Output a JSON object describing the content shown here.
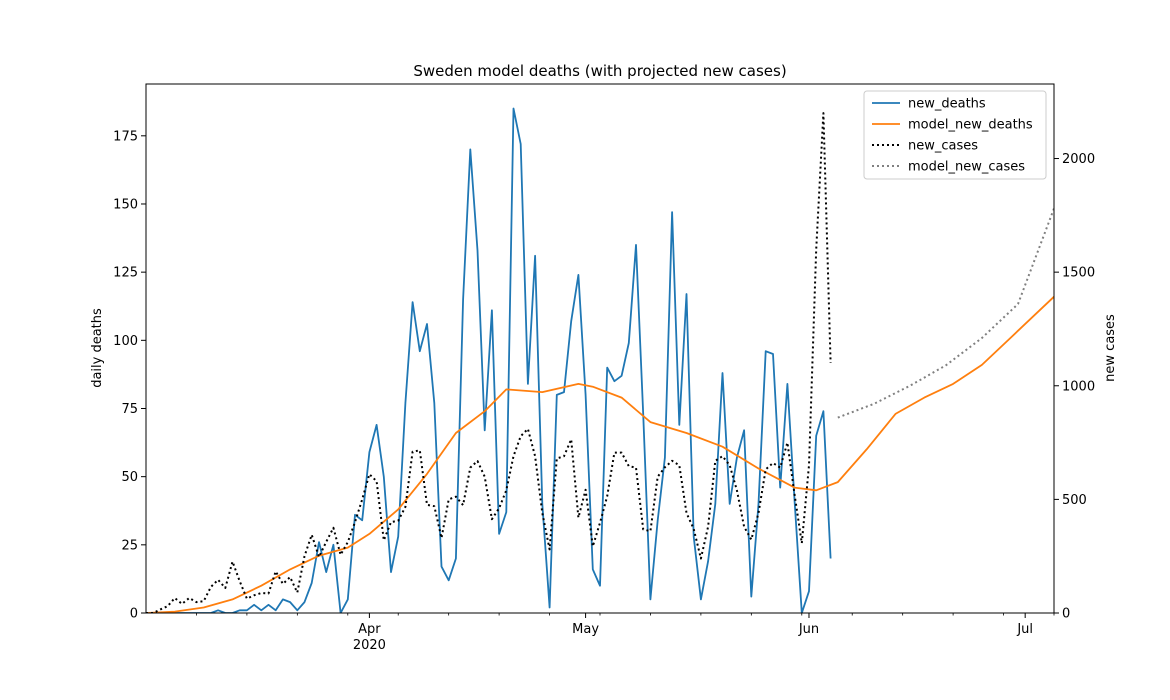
{
  "chart_data": {
    "type": "line",
    "title": "Sweden model deaths (with projected new cases)",
    "ylabel_left": "daily deaths",
    "ylabel_right": "new cases",
    "xlim": [
      "2020-03-01",
      "2020-07-05"
    ],
    "ylim_left": [
      0,
      194
    ],
    "ylim_right": [
      0,
      2328
    ],
    "yticks_left": [
      0,
      25,
      50,
      75,
      100,
      125,
      150,
      175
    ],
    "yticks_right": [
      0,
      500,
      1000,
      1500,
      2000
    ],
    "xticks_major": [
      {
        "date": "2020-04-01",
        "label": "Apr",
        "sublabel": "2020"
      },
      {
        "date": "2020-05-01",
        "label": "May",
        "sublabel": ""
      },
      {
        "date": "2020-06-01",
        "label": "Jun",
        "sublabel": ""
      },
      {
        "date": "2020-07-01",
        "label": "Jul",
        "sublabel": ""
      }
    ],
    "xticks_minor": [
      "2020-03-08",
      "2020-03-15",
      "2020-03-22",
      "2020-03-29",
      "2020-04-05",
      "2020-04-12",
      "2020-04-19",
      "2020-04-26",
      "2020-05-03",
      "2020-05-10",
      "2020-05-17",
      "2020-05-24",
      "2020-05-31",
      "2020-06-07",
      "2020-06-14",
      "2020-06-21",
      "2020-06-28",
      "2020-07-05"
    ],
    "grid": false,
    "legend_position": "top-right",
    "series": [
      {
        "name": "new_deaths",
        "axis": "left",
        "color": "#1f77b4",
        "style": "solid",
        "start": "2020-03-01",
        "values": [
          0,
          0,
          0,
          0,
          0,
          0,
          0,
          0,
          0,
          0,
          1,
          0,
          0,
          1,
          1,
          3,
          1,
          3,
          1,
          5,
          4,
          1,
          4,
          11,
          26,
          15,
          25,
          0,
          5,
          36,
          34,
          59,
          69,
          50,
          15,
          28,
          77,
          114,
          96,
          106,
          77,
          17,
          12,
          20,
          115,
          170,
          133,
          67,
          111,
          29,
          37,
          185,
          172,
          84,
          131,
          40,
          2,
          80,
          81,
          107,
          124,
          80,
          16,
          10,
          90,
          85,
          87,
          99,
          135,
          73,
          5,
          34,
          57,
          147,
          69,
          117,
          28,
          5,
          19,
          40,
          88,
          40,
          57,
          67,
          6,
          40,
          96,
          95,
          46,
          84,
          41,
          0,
          8,
          65,
          74,
          20
        ]
      },
      {
        "name": "model_new_deaths",
        "axis": "left",
        "color": "#ff7f0e",
        "style": "solid",
        "points": [
          [
            "2020-03-01",
            0
          ],
          [
            "2020-03-05",
            0.5
          ],
          [
            "2020-03-09",
            2
          ],
          [
            "2020-03-13",
            5
          ],
          [
            "2020-03-17",
            10
          ],
          [
            "2020-03-21",
            16
          ],
          [
            "2020-03-25",
            21
          ],
          [
            "2020-03-29",
            24
          ],
          [
            "2020-04-01",
            29
          ],
          [
            "2020-04-05",
            38
          ],
          [
            "2020-04-09",
            51
          ],
          [
            "2020-04-13",
            66
          ],
          [
            "2020-04-17",
            74
          ],
          [
            "2020-04-20",
            82
          ],
          [
            "2020-04-25",
            81
          ],
          [
            "2020-04-30",
            84
          ],
          [
            "2020-05-02",
            83
          ],
          [
            "2020-05-06",
            79
          ],
          [
            "2020-05-10",
            70
          ],
          [
            "2020-05-15",
            66
          ],
          [
            "2020-05-20",
            61
          ],
          [
            "2020-05-25",
            53
          ],
          [
            "2020-05-30",
            46
          ],
          [
            "2020-06-02",
            45
          ],
          [
            "2020-06-05",
            48
          ],
          [
            "2020-06-09",
            60
          ],
          [
            "2020-06-13",
            73
          ],
          [
            "2020-06-17",
            79
          ],
          [
            "2020-06-21",
            84
          ],
          [
            "2020-06-25",
            91
          ],
          [
            "2020-06-29",
            101
          ],
          [
            "2020-07-03",
            111
          ],
          [
            "2020-07-05",
            116
          ]
        ]
      },
      {
        "name": "new_cases",
        "axis": "right",
        "color": "#000000",
        "style": "dotted",
        "start": "2020-03-01",
        "values": [
          0,
          0,
          16,
          30,
          66,
          40,
          66,
          48,
          52,
          115,
          146,
          110,
          226,
          140,
          63,
          78,
          88,
          86,
          183,
          128,
          158,
          90,
          250,
          344,
          247,
          313,
          375,
          256,
          312,
          400,
          500,
          611,
          580,
          320,
          400,
          406,
          467,
          710,
          716,
          476,
          470,
          330,
          500,
          512,
          475,
          640,
          669,
          600,
          413,
          461,
          540,
          690,
          778,
          810,
          690,
          440,
          280,
          680,
          690,
          764,
          420,
          542,
          293,
          397,
          514,
          706,
          706,
          646,
          640,
          368,
          360,
          600,
          641,
          670,
          650,
          440,
          370,
          240,
          380,
          670,
          690,
          650,
          540,
          380,
          323,
          440,
          632,
          660,
          640,
          750,
          520,
          307,
          650,
          1600,
          2200,
          1100
        ]
      },
      {
        "name": "model_new_cases",
        "axis": "right",
        "color": "#808080",
        "style": "dotted",
        "points": [
          [
            "2020-06-05",
            860
          ],
          [
            "2020-06-10",
            920
          ],
          [
            "2020-06-15",
            1000
          ],
          [
            "2020-06-20",
            1090
          ],
          [
            "2020-06-25",
            1210
          ],
          [
            "2020-06-30",
            1360
          ],
          [
            "2020-07-05",
            1780
          ]
        ]
      }
    ]
  }
}
